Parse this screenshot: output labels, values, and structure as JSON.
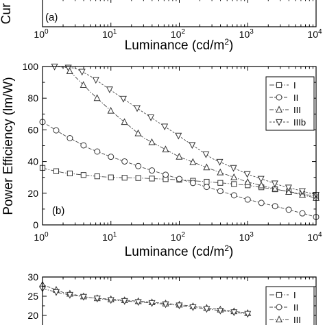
{
  "chart_data": [
    {
      "panel": "top",
      "type": "line",
      "panel_label": "(a)",
      "ylabel": "Cur",
      "xlabel": "Luminance (cd/m",
      "xlabel_sup": "2",
      "xlabel_end": ")",
      "xscale": "log",
      "xlim": [
        1,
        10000
      ],
      "x_tick_labels": [
        {
          "base": "10",
          "exp": "0"
        },
        {
          "base": "10",
          "exp": "1"
        },
        {
          "base": "10",
          "exp": "2"
        },
        {
          "base": "10",
          "exp": "3"
        },
        {
          "base": "10",
          "exp": "4"
        }
      ]
    },
    {
      "panel": "middle",
      "type": "line",
      "panel_label": "(b)",
      "ylabel": "Power Efficiency (lm/W)",
      "xlabel": "Luminance (cd/m",
      "xlabel_sup": "2",
      "xlabel_end": ")",
      "xscale": "log",
      "xlim": [
        1,
        10000
      ],
      "ylim": [
        0,
        100
      ],
      "y_ticks": [
        0,
        20,
        40,
        60,
        80,
        100
      ],
      "x_tick_labels": [
        {
          "base": "10",
          "exp": "0"
        },
        {
          "base": "10",
          "exp": "1"
        },
        {
          "base": "10",
          "exp": "2"
        },
        {
          "base": "10",
          "exp": "3"
        },
        {
          "base": "10",
          "exp": "4"
        }
      ],
      "legend_position": "top-right",
      "series": [
        {
          "name": "I",
          "marker": "square",
          "x": [
            1,
            1.2,
            2,
            5,
            10,
            30,
            100,
            300,
            1000,
            3000,
            10000
          ],
          "y": [
            36,
            35,
            33,
            31,
            30,
            29.5,
            28.5,
            27,
            25,
            22,
            18
          ]
        },
        {
          "name": "II",
          "marker": "circle",
          "x": [
            1,
            2,
            5,
            10,
            30,
            100,
            300,
            1000,
            3000,
            10000
          ],
          "y": [
            65,
            57,
            48,
            43,
            36,
            29,
            23,
            16,
            11,
            5
          ]
        },
        {
          "name": "III",
          "marker": "triangle-up",
          "x": [
            2.5,
            5,
            10,
            30,
            100,
            300,
            1000,
            3000,
            10000
          ],
          "y": [
            97,
            84,
            72,
            55,
            43,
            35,
            27,
            22,
            17
          ]
        },
        {
          "name": "IIIb",
          "marker": "triangle-down",
          "x": [
            1.5,
            3,
            5,
            10,
            30,
            100,
            300,
            1000,
            3000,
            10000
          ],
          "y": [
            100,
            99,
            94,
            85,
            71,
            56,
            42,
            32,
            25,
            19
          ]
        }
      ]
    },
    {
      "panel": "bottom",
      "type": "line",
      "xscale": "log",
      "xlim": [
        1,
        10000
      ],
      "y_tick_labels": [
        "30",
        "25",
        "20"
      ],
      "legend_position": "top-right",
      "series": [
        {
          "name": "I",
          "marker": "square"
        },
        {
          "name": "II",
          "marker": "circle"
        },
        {
          "name": "III",
          "marker": "triangle-up"
        }
      ],
      "visible_curves": [
        {
          "marker": "triangle-up",
          "x": [
            1,
            2,
            5,
            10,
            30,
            100,
            300,
            1000
          ],
          "y": [
            28,
            26,
            24.6,
            24.2,
            23.6,
            22.8,
            21.8,
            20.6
          ]
        },
        {
          "marker": "triangle-down",
          "x": [
            1,
            2,
            5,
            10,
            30,
            100,
            300,
            1000
          ],
          "y": [
            27,
            25.6,
            24.6,
            24,
            23.4,
            22.6,
            21.5,
            20.4
          ]
        }
      ]
    }
  ]
}
